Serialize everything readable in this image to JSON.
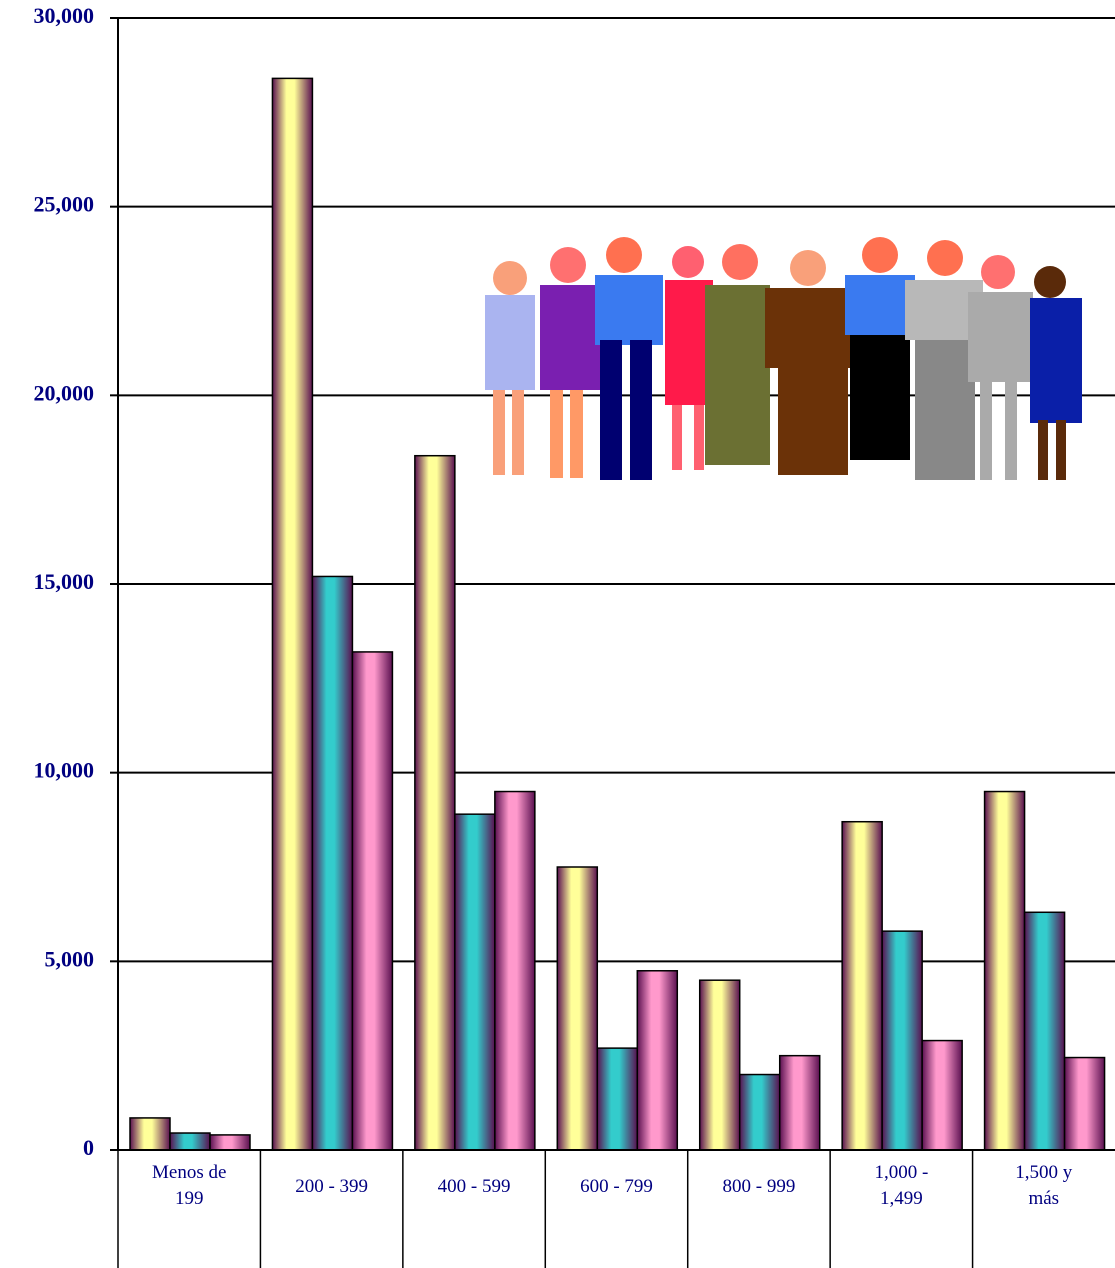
{
  "chart_data": {
    "type": "bar",
    "categories": [
      "Menos de 199",
      "200 - 399",
      "400 - 599",
      "600 - 799",
      "800 - 999",
      "1,000 - 1,499",
      "1,500 y más"
    ],
    "series": [
      {
        "color": "#ffff99",
        "values": [
          850,
          28400,
          18400,
          7500,
          4500,
          8700,
          9500
        ]
      },
      {
        "color": "#33cccc",
        "values": [
          450,
          15200,
          8900,
          2700,
          2000,
          5800,
          6300
        ]
      },
      {
        "color": "#ff99cc",
        "values": [
          400,
          13200,
          9500,
          4750,
          2500,
          2900,
          2450
        ]
      }
    ],
    "ylim": [
      0,
      30000
    ],
    "yticks": [
      0,
      {
        "value": 5000,
        "label": "5,000"
      },
      {
        "value": 10000,
        "label": "10,000"
      },
      {
        "value": 15000,
        "label": "15,000"
      },
      {
        "value": 20000,
        "label": "20,000"
      },
      {
        "value": 25000,
        "label": "25,000"
      },
      {
        "value": 30000,
        "label": "30,000"
      }
    ],
    "grid": true
  }
}
